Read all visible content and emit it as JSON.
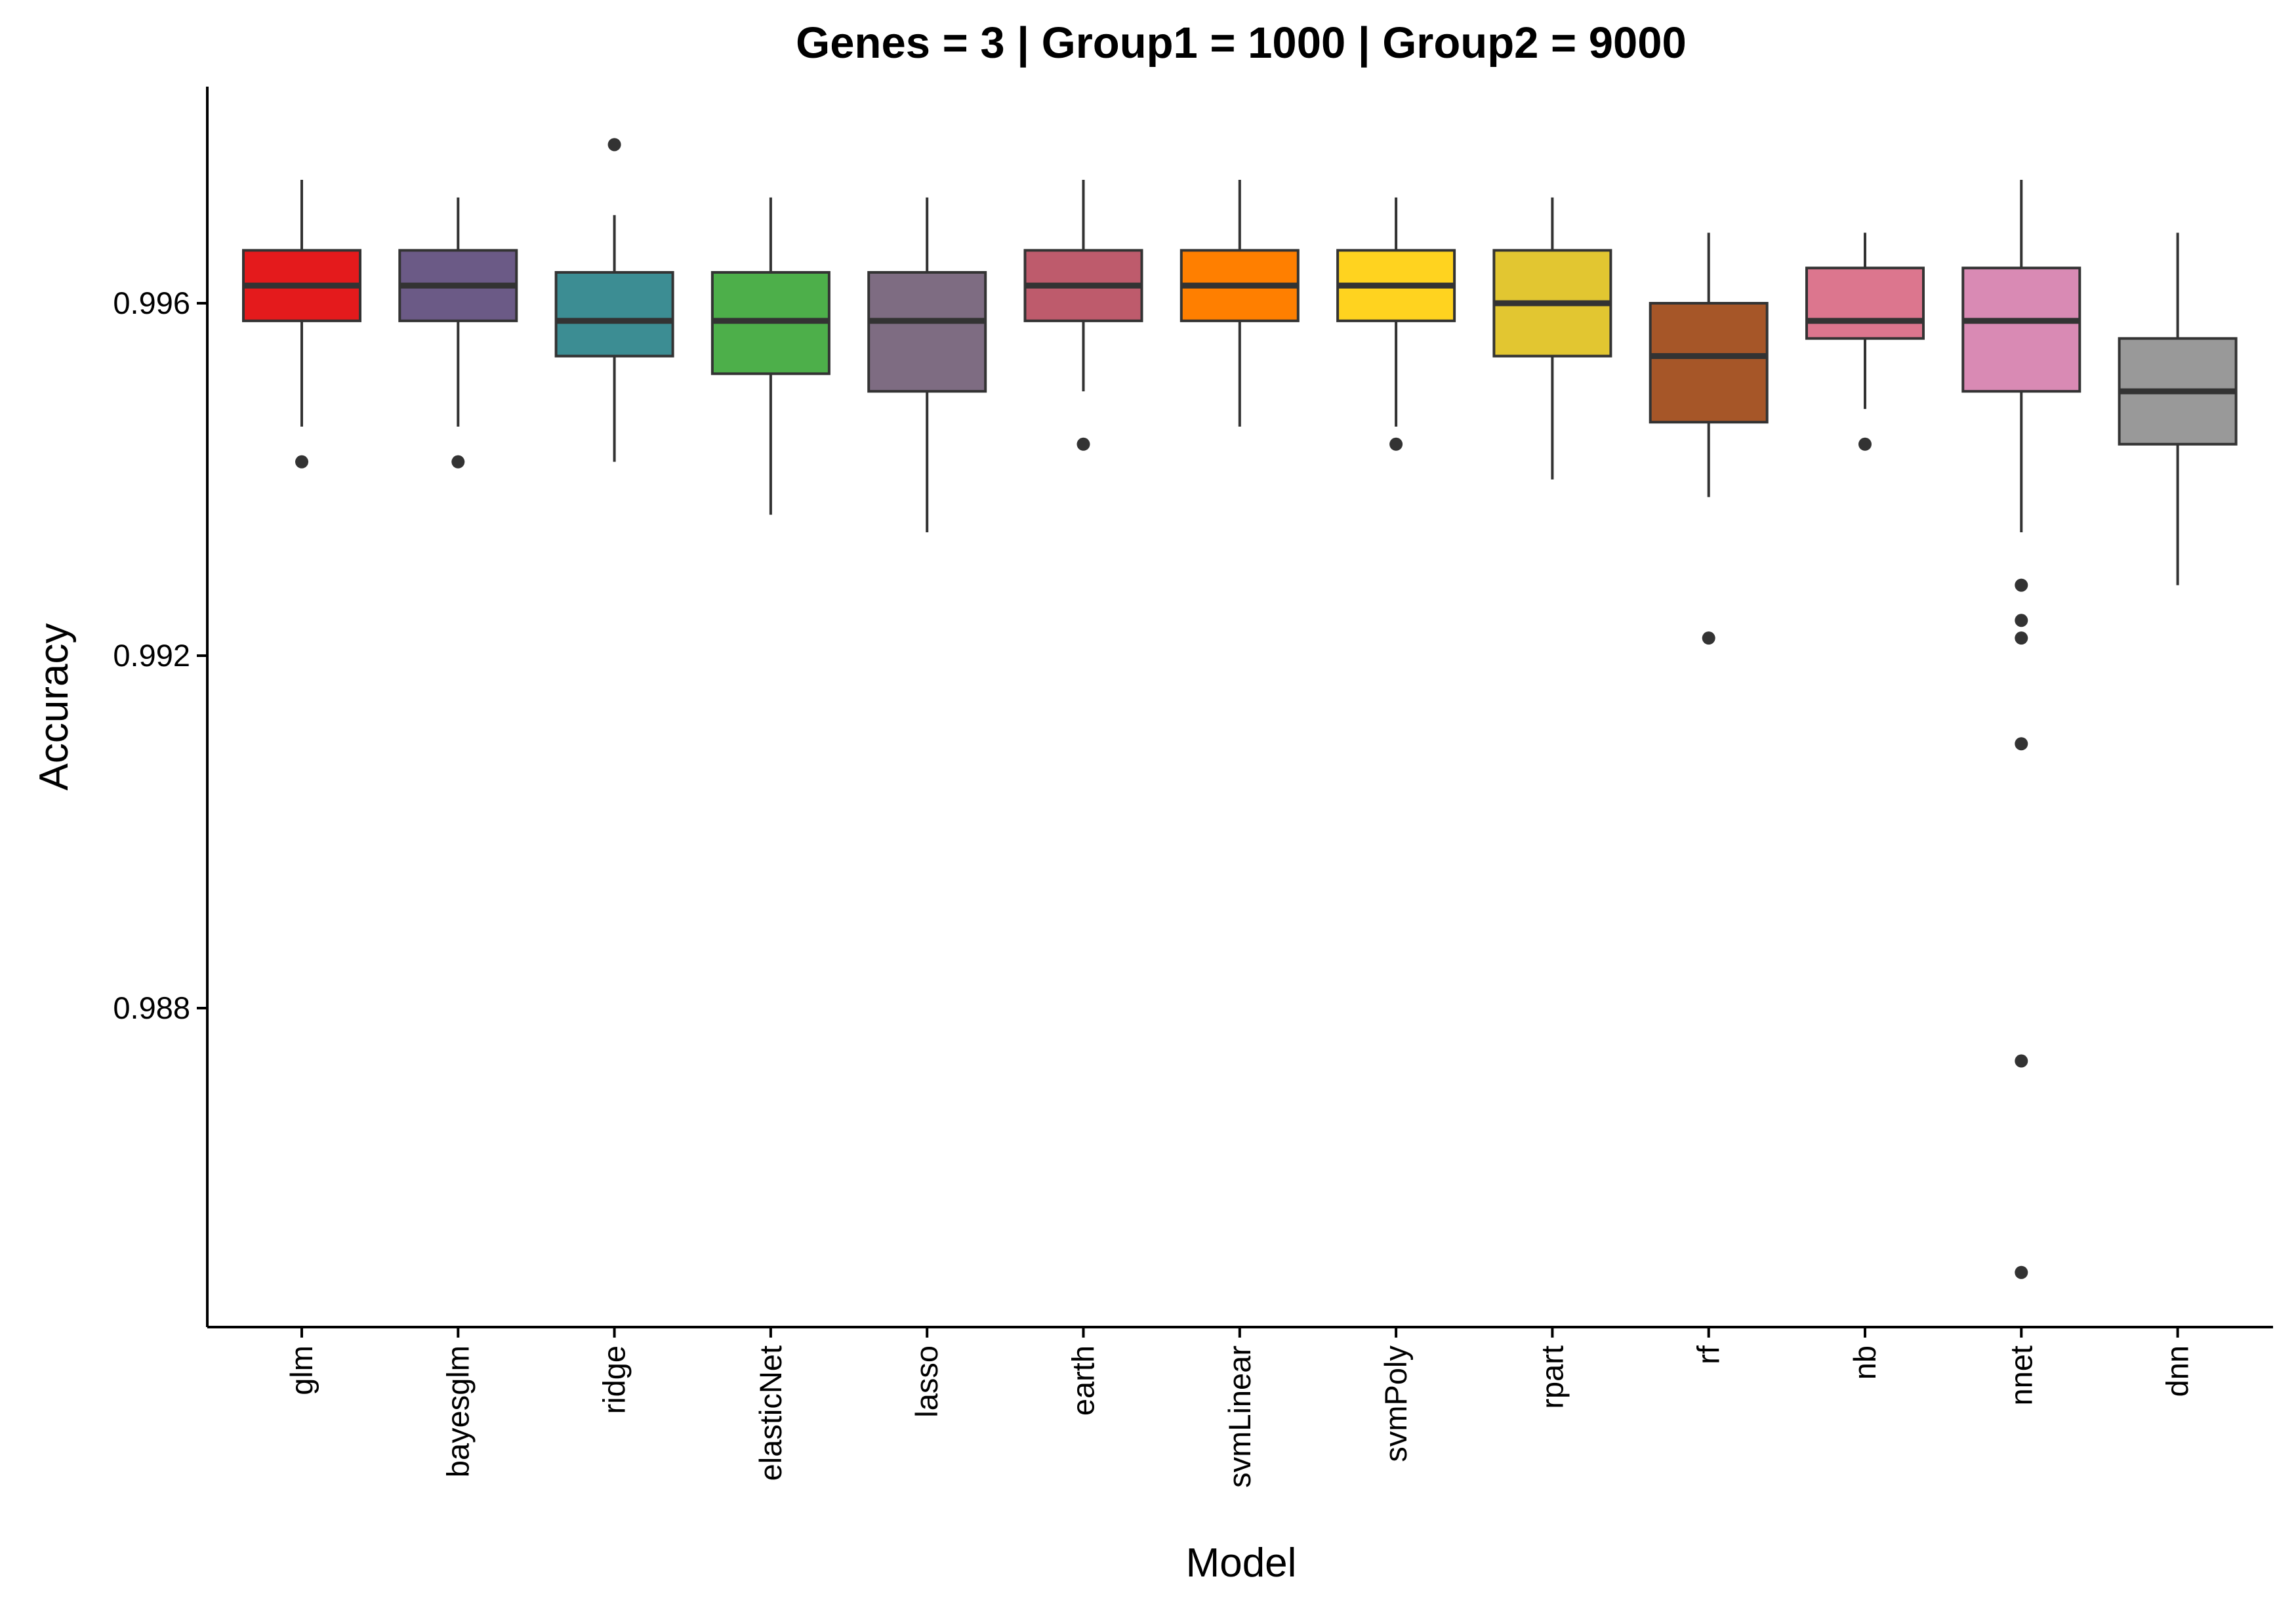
{
  "chart_data": {
    "type": "boxplot",
    "title": "Genes = 3 | Group1 = 1000 | Group2 = 9000",
    "xlabel": "Model",
    "ylabel": "Accuracy",
    "ylim": [
      0.9847,
      0.9988
    ],
    "yticks": [
      0.988,
      0.992,
      0.996
    ],
    "ytick_labels": [
      "0.988",
      "0.992",
      "0.996"
    ],
    "grid": false,
    "legend": "none",
    "categories": [
      "glm",
      "bayesglm",
      "ridge",
      "elasticNet",
      "lasso",
      "earth",
      "svmLinear",
      "svmPoly",
      "rpart",
      "rf",
      "nb",
      "nnet",
      "dnn"
    ],
    "series": [
      {
        "color": "#E41A1C",
        "whisker_low": 0.9946,
        "q1": 0.9958,
        "median": 0.9962,
        "q3": 0.9966,
        "whisker_high": 0.9974,
        "outliers": [
          0.9942
        ]
      },
      {
        "color": "#6B5A86",
        "whisker_low": 0.9946,
        "q1": 0.9958,
        "median": 0.9962,
        "q3": 0.9966,
        "whisker_high": 0.9972,
        "outliers": [
          0.9942
        ]
      },
      {
        "color": "#3C8D93",
        "whisker_low": 0.9942,
        "q1": 0.9954,
        "median": 0.9958,
        "q3": 0.99635,
        "whisker_high": 0.997,
        "outliers": [
          0.9978
        ]
      },
      {
        "color": "#4DAF4A",
        "whisker_low": 0.9936,
        "q1": 0.9952,
        "median": 0.9958,
        "q3": 0.99635,
        "whisker_high": 0.9972,
        "outliers": []
      },
      {
        "color": "#7E6C82",
        "whisker_low": 0.9934,
        "q1": 0.995,
        "median": 0.9958,
        "q3": 0.99635,
        "whisker_high": 0.9972,
        "outliers": []
      },
      {
        "color": "#BE5B6C",
        "whisker_low": 0.995,
        "q1": 0.9958,
        "median": 0.9962,
        "q3": 0.9966,
        "whisker_high": 0.9974,
        "outliers": [
          0.9944
        ]
      },
      {
        "color": "#FF7F00",
        "whisker_low": 0.9946,
        "q1": 0.9958,
        "median": 0.9962,
        "q3": 0.9966,
        "whisker_high": 0.9974,
        "outliers": []
      },
      {
        "color": "#FFD31F",
        "whisker_low": 0.9946,
        "q1": 0.9958,
        "median": 0.9962,
        "q3": 0.9966,
        "whisker_high": 0.9972,
        "outliers": [
          0.9944
        ]
      },
      {
        "color": "#E2C631",
        "whisker_low": 0.994,
        "q1": 0.9954,
        "median": 0.996,
        "q3": 0.9966,
        "whisker_high": 0.9972,
        "outliers": []
      },
      {
        "color": "#A65628",
        "whisker_low": 0.9938,
        "q1": 0.99465,
        "median": 0.9954,
        "q3": 0.996,
        "whisker_high": 0.9968,
        "outliers": [
          0.9922
        ]
      },
      {
        "color": "#DC768E",
        "whisker_low": 0.9948,
        "q1": 0.9956,
        "median": 0.9958,
        "q3": 0.9964,
        "whisker_high": 0.9968,
        "outliers": [
          0.9944
        ]
      },
      {
        "color": "#D98AB4",
        "whisker_low": 0.9934,
        "q1": 0.995,
        "median": 0.9958,
        "q3": 0.9964,
        "whisker_high": 0.9974,
        "outliers": [
          0.9928,
          0.9924,
          0.9922,
          0.991,
          0.9874,
          0.985
        ]
      },
      {
        "color": "#999999",
        "whisker_low": 0.9928,
        "q1": 0.9944,
        "median": 0.995,
        "q3": 0.9956,
        "whisker_high": 0.9968,
        "outliers": []
      }
    ]
  }
}
